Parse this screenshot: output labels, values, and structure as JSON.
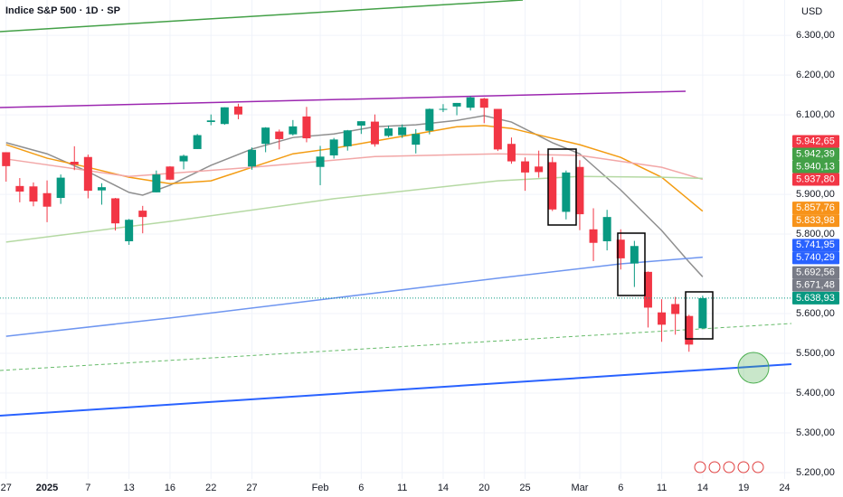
{
  "chart_data": {
    "type": "candlestick",
    "title": "Indice S&P 500 · 1D · SP",
    "currency": "USD",
    "categories": [
      "27",
      null,
      null,
      "2025",
      null,
      null,
      "7",
      null,
      null,
      "13",
      null,
      null,
      "16",
      null,
      null,
      "22",
      null,
      null,
      "27",
      null,
      null,
      null,
      null,
      "Feb",
      null,
      null,
      "6",
      null,
      null,
      "11",
      null,
      null,
      "14",
      null,
      null,
      "20",
      null,
      null,
      "25",
      null,
      null,
      null,
      "Mar",
      null,
      null,
      "6",
      null,
      null,
      "11",
      null,
      null,
      "14",
      null,
      null,
      "19",
      null,
      null,
      "24"
    ],
    "open": [
      6006,
      5921,
      5920,
      5903,
      5891,
      5982,
      5994,
      5910,
      5890,
      5782,
      5859,
      5905,
      5970,
      5983,
      6014,
      6082,
      6077,
      6121,
      5970,
      6027,
      6058,
      6051,
      6096,
      5969,
      5998,
      6021,
      6073,
      6083,
      6047,
      6049,
      6025,
      6060,
      6115,
      6121,
      6118,
      6141,
      6115,
      6027,
      5983,
      5970,
      5981,
      5856,
      5969,
      5812,
      5782,
      5786,
      5726,
      5705,
      5603,
      5624,
      5594,
      5563,
      null,
      null,
      null,
      null,
      null,
      null
    ],
    "high": [
      6006,
      5941,
      5930,
      5935,
      5950,
      6021,
      6000,
      5928,
      5891,
      5838,
      5871,
      5960,
      5971,
      6000,
      6052,
      6101,
      6119,
      6128,
      6018,
      6069,
      6063,
      6087,
      6120,
      6022,
      6042,
      6062,
      6084,
      6101,
      6073,
      6076,
      6064,
      6116,
      6127,
      6130,
      6147,
      6143,
      6115,
      6043,
      5993,
      6010,
      5994,
      5960,
      5986,
      5865,
      5861,
      5812,
      5783,
      5706,
      5636,
      5642,
      5597,
      5645,
      null,
      null,
      null,
      null,
      null,
      null
    ],
    "low": [
      5932,
      5880,
      5870,
      5830,
      5876,
      5961,
      5890,
      5874,
      5809,
      5773,
      5802,
      5905,
      5936,
      5963,
      6014,
      6074,
      6075,
      6089,
      5962,
      6006,
      6013,
      6048,
      6031,
      5923,
      5990,
      6010,
      6052,
      6020,
      6044,
      6042,
      6003,
      6051,
      6107,
      6099,
      6111,
      6079,
      6009,
      5977,
      5909,
      5942,
      5858,
      5837,
      5810,
      5732,
      5759,
      5711,
      5667,
      5565,
      5529,
      5547,
      5504,
      5562,
      null,
      null,
      null,
      null,
      null,
      null
    ],
    "close": [
      5971,
      5907,
      5882,
      5869,
      5942,
      5975,
      5909,
      5918,
      5827,
      5836,
      5843,
      5950,
      5937,
      5997,
      6049,
      6086,
      6119,
      6101,
      6012,
      6068,
      6039,
      6071,
      6041,
      5995,
      6038,
      6061,
      6084,
      6026,
      6066,
      6069,
      6052,
      6115,
      6115,
      6130,
      6144,
      6118,
      6013,
      5983,
      5955,
      5956,
      5862,
      5955,
      5850,
      5778,
      5843,
      5739,
      5770,
      5615,
      5572,
      5599,
      5522,
      5638.93,
      null,
      null,
      null,
      null,
      null,
      null
    ],
    "up_color": "#089981",
    "down_color": "#f23645",
    "ylim": [
      5184,
      6389
    ],
    "yticks": [
      {
        "value": 6300,
        "label": "6.300,00"
      },
      {
        "value": 6200,
        "label": "6.200,00"
      },
      {
        "value": 6100,
        "label": "6.100,00"
      },
      {
        "value": 5900,
        "label": "5.900,00"
      },
      {
        "value": 5800,
        "label": "5.800,00"
      },
      {
        "value": 5600,
        "label": "5.600,00"
      },
      {
        "value": 5500,
        "label": "5.500,00"
      },
      {
        "value": 5400,
        "label": "5.400,00"
      },
      {
        "value": 5300,
        "label": "5.300,00"
      },
      {
        "value": 5200,
        "label": "5.200,00"
      }
    ],
    "grid": true,
    "overlays": [
      {
        "color": "#8f8f8f",
        "x": [
          0,
          3,
          6,
          9,
          10,
          12,
          15,
          18,
          21,
          24,
          27,
          30,
          33,
          35,
          37,
          40,
          42,
          45,
          48,
          50,
          51
        ],
        "values": [
          6030,
          6002,
          5957,
          5905,
          5898,
          5923,
          5973,
          6014,
          6043,
          6052,
          6070,
          6075,
          6086,
          6098,
          6082,
          6030,
          6002,
          5911,
          5809,
          5730,
          5692.56
        ]
      },
      {
        "color": "#f39c12",
        "x": [
          0,
          3,
          6,
          9,
          12,
          15,
          18,
          21,
          24,
          27,
          30,
          33,
          35,
          37,
          40,
          42,
          45,
          48,
          51
        ],
        "values": [
          6025,
          5991,
          5968,
          5943,
          5927,
          5934,
          5968,
          6002,
          6016,
          6034,
          6052,
          6070,
          6073,
          6066,
          6041,
          6025,
          5993,
          5943,
          5857.76
        ]
      },
      {
        "color": "#f2a7a7",
        "x": [
          0,
          9,
          18,
          27,
          36,
          42,
          48,
          51
        ],
        "values": [
          5989,
          5945,
          5968,
          5995,
          6002,
          5998,
          5968,
          5937.8
        ]
      },
      {
        "color": "#b5d9a3",
        "x": [
          0,
          12,
          24,
          36,
          42,
          48,
          51
        ],
        "values": [
          5780,
          5832,
          5889,
          5934,
          5945,
          5943,
          5940.13
        ]
      },
      {
        "color": "#6f96f0",
        "x": [
          0,
          12,
          24,
          36,
          45,
          51
        ],
        "values": [
          5543,
          5589,
          5639,
          5689,
          5725,
          5741.95
        ]
      }
    ],
    "price_labels": [
      {
        "value": 5942.65,
        "label": "5.942,65",
        "color": "#f23645"
      },
      {
        "value": 5942.39,
        "label": "5.942,39",
        "color": "#43a047"
      },
      {
        "value": 5940.13,
        "label": "5.940,13",
        "color": "#43a047"
      },
      {
        "value": 5937.8,
        "label": "5.937,80",
        "color": "#f23645"
      },
      {
        "value": 5857.76,
        "label": "5.857,76",
        "color": "#f7931a"
      },
      {
        "value": 5833.98,
        "label": "5.833,98",
        "color": "#f7931a"
      },
      {
        "value": 5741.95,
        "label": "5.741,95",
        "color": "#2962ff"
      },
      {
        "value": 5740.29,
        "label": "5.740,29",
        "color": "#2962ff"
      },
      {
        "value": 5692.56,
        "label": "5.692,56",
        "color": "#787b86"
      },
      {
        "value": 5671.48,
        "label": "5.671,48",
        "color": "#787b86"
      },
      {
        "value": 5638.93,
        "label": "5.638,93",
        "color": "#089981"
      }
    ]
  }
}
